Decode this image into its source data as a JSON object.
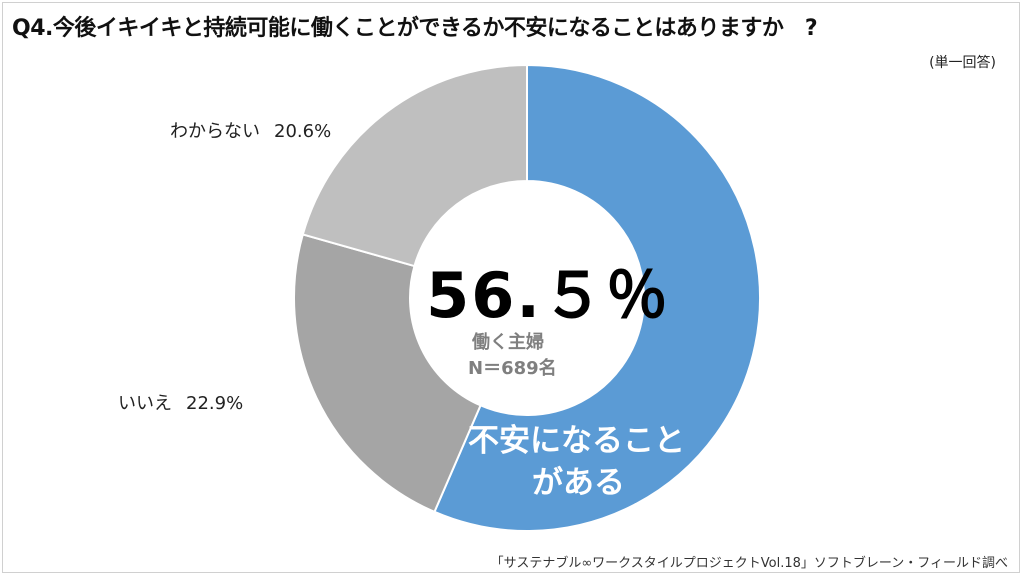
{
  "title": "Q4.今後イキイキと持続可能に働くことができるか不安になることはありますか　?",
  "subnote": "(単一回答)",
  "source": "「サステナブル∞ワークスタイルプロジェクトVol.18」ソフトブレーン・フィールド調べ",
  "chart_data": {
    "type": "pie",
    "title": "Q4.今後イキイキと持続可能に働くことができるか不安になることはありますか　?",
    "slices": [
      {
        "label": "不安になることがある",
        "value": 56.5,
        "color": "#5b9bd5"
      },
      {
        "label": "いいえ",
        "value": 22.9,
        "color": "#a5a5a5"
      },
      {
        "label": "わからない",
        "value": 20.6,
        "color": "#bfbfbf"
      }
    ],
    "center_value": "56.５％",
    "center_line1": "働く主婦",
    "center_line2": "N＝689名",
    "slice_label_line1": "不安になること",
    "slice_label_line2": "がある",
    "outside_labels": [
      {
        "label": "わからない",
        "pct": "20.6%"
      },
      {
        "label": "いいえ",
        "pct": "22.9%"
      }
    ]
  }
}
